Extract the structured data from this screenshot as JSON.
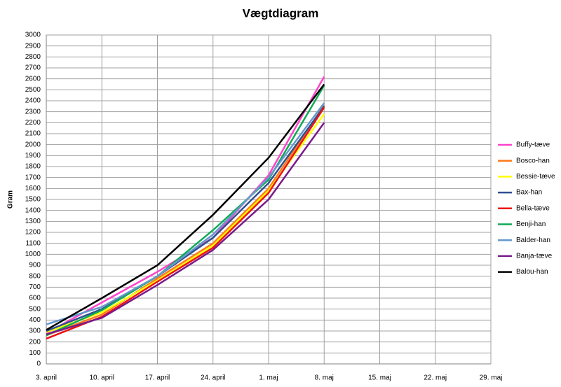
{
  "chart_data": {
    "type": "line",
    "title": "Vægtdiagram",
    "y_label": "Gram",
    "categories": [
      "3. april",
      "10. april",
      "17. april",
      "24. april",
      "1. maj",
      "8. maj",
      "15. maj",
      "22. maj",
      "29. maj"
    ],
    "ylim": [
      0,
      3000
    ],
    "yticks": [
      0,
      100,
      200,
      300,
      400,
      500,
      600,
      700,
      800,
      900,
      1000,
      1100,
      1200,
      1300,
      1400,
      1500,
      1600,
      1700,
      1800,
      1900,
      2000,
      2100,
      2200,
      2300,
      2400,
      2500,
      2600,
      2700,
      2800,
      2900,
      3000
    ],
    "grid": true,
    "legend": "right",
    "series": [
      {
        "name": "Buffy-tæve",
        "color": "#ff44cc",
        "values": [
          280,
          560,
          840,
          1150,
          1720,
          2620,
          null,
          null,
          null
        ]
      },
      {
        "name": "Bosco-han",
        "color": "#ff7a1a",
        "values": [
          260,
          450,
          780,
          1100,
          1600,
          2360,
          null,
          null,
          null
        ]
      },
      {
        "name": "Bessie-tæve",
        "color": "#ffff00",
        "values": [
          290,
          470,
          760,
          1080,
          1580,
          2280,
          null,
          null,
          null
        ]
      },
      {
        "name": "Bax-han",
        "color": "#2f4f8f",
        "values": [
          300,
          500,
          800,
          1150,
          1650,
          2350,
          null,
          null,
          null
        ]
      },
      {
        "name": "Bella-tæve",
        "color": "#ee1111",
        "values": [
          230,
          430,
          750,
          1060,
          1560,
          2340,
          null,
          null,
          null
        ]
      },
      {
        "name": "Benji-han",
        "color": "#11aa55",
        "values": [
          260,
          490,
          800,
          1220,
          1680,
          2540,
          null,
          null,
          null
        ]
      },
      {
        "name": "Balder-han",
        "color": "#6699cc",
        "values": [
          360,
          520,
          800,
          1180,
          1700,
          2380,
          null,
          null,
          null
        ]
      },
      {
        "name": "Banja-tæve",
        "color": "#7a1a8a",
        "values": [
          270,
          420,
          720,
          1040,
          1500,
          2200,
          null,
          null,
          null
        ]
      },
      {
        "name": "Balou-han",
        "color": "#000000",
        "values": [
          310,
          600,
          900,
          1360,
          1880,
          2550,
          null,
          null,
          null
        ]
      }
    ]
  }
}
